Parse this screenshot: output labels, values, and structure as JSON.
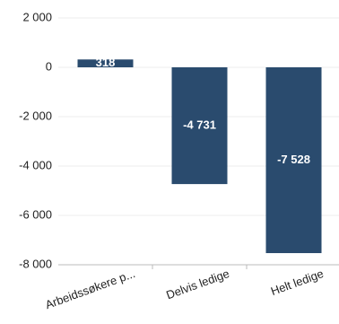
{
  "chart_data": {
    "type": "bar",
    "categories": [
      "Arbeidssøkere p...",
      "Delvis ledige",
      "Helt ledige"
    ],
    "values": [
      318,
      -4731,
      -7528
    ],
    "value_labels": [
      "318",
      "-4 731",
      "-7 528"
    ],
    "color": "#2a4b6e",
    "ylim": [
      -8000,
      2000
    ],
    "yticks": [
      {
        "value": 2000,
        "label": "2 000"
      },
      0,
      {
        "value": -2000,
        "label": "-2 000"
      },
      {
        "value": -4000,
        "label": "-4 000"
      },
      {
        "value": -6000,
        "label": "-6 000"
      },
      {
        "value": -8000,
        "label": "-8 000"
      }
    ],
    "grid": true
  }
}
